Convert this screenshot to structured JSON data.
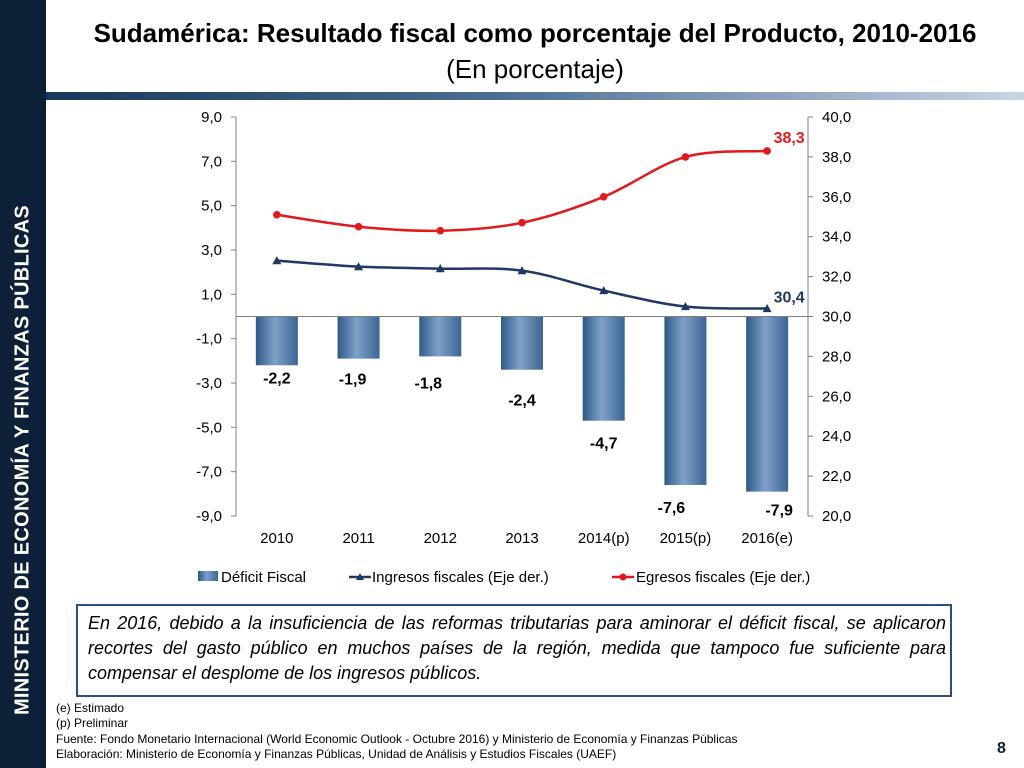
{
  "sidebar": {
    "text": "MINISTERIO DE ECONOMÍA Y FINANZAS PÚBLICAS"
  },
  "header": {
    "title": "Sudamérica: Resultado fiscal como porcentaje del Producto, 2010-2016",
    "subtitle": "(En porcentaje)"
  },
  "colors": {
    "sidebar_bg": "#0d2038",
    "bar_fill": "#4f81bd",
    "ingresos_line": "#1f3864",
    "egresos_line": "#e31a1c",
    "box_border": "#2a4f83"
  },
  "chart_data": {
    "type": "bar+line",
    "categories": [
      "2010",
      "2011",
      "2012",
      "2013",
      "2014(p)",
      "2015(p)",
      "2016(e)"
    ],
    "series": [
      {
        "name": "Déficit Fiscal",
        "type": "bar",
        "axis": "left",
        "values": [
          -2.2,
          -1.9,
          -1.8,
          -2.4,
          -4.7,
          -7.6,
          -7.9
        ],
        "labels": [
          "-2,2",
          "-1,9",
          "-1,8",
          "-2,4",
          "-4,7",
          "-7,6",
          "-7,9"
        ]
      },
      {
        "name": "Ingresos fiscales (Eje der.)",
        "type": "line",
        "axis": "right",
        "marker": "triangle",
        "values": [
          32.8,
          32.5,
          32.4,
          32.3,
          31.3,
          30.5,
          30.4
        ],
        "end_label": "30,4"
      },
      {
        "name": "Egresos fiscales (Eje der.)",
        "type": "line",
        "axis": "right",
        "marker": "circle",
        "values": [
          35.1,
          34.5,
          34.3,
          34.7,
          36.0,
          38.0,
          38.3
        ],
        "end_label": "38,3"
      }
    ],
    "left_axis": {
      "ylim": [
        -9,
        9
      ],
      "ticks": [
        9,
        7,
        5,
        3,
        1,
        -1,
        -3,
        -5,
        -7,
        -9
      ],
      "tick_labels": [
        "9,0",
        "7,0",
        "5,0",
        "3,0",
        "1,0",
        "-1,0",
        "-3,0",
        "-5,0",
        "-7,0",
        "-9,0"
      ]
    },
    "right_axis": {
      "ylim": [
        20,
        40
      ],
      "ticks": [
        40,
        38,
        36,
        34,
        32,
        30,
        28,
        26,
        24,
        22,
        20
      ],
      "tick_labels": [
        "40,0",
        "38,0",
        "36,0",
        "34,0",
        "32,0",
        "30,0",
        "28,0",
        "26,0",
        "24,0",
        "22,0",
        "20,0"
      ]
    },
    "legend": {
      "position": "bottom",
      "items": [
        "Déficit Fiscal",
        "Ingresos fiscales (Eje der.)",
        "Egresos fiscales (Eje der.)"
      ]
    },
    "grid": false
  },
  "note": {
    "text": "En 2016, debido a la insuficiencia de las reformas tributarias para aminorar el déficit fiscal, se aplicaron recortes del gasto público en muchos países de la región, medida que tampoco fue suficiente para compensar el desplome de los ingresos públicos."
  },
  "footnotes": [
    "(e) Estimado",
    "(p) Preliminar",
    "Fuente: Fondo Monetario Internacional (World Economic Outlook - Octubre 2016) y Ministerio de Economía y Finanzas Públicas",
    "Elaboración: Ministerio de Economía y Finanzas Públicas, Unidad de Análisis y Estudios Fiscales (UAEF)"
  ],
  "page_number": "8"
}
